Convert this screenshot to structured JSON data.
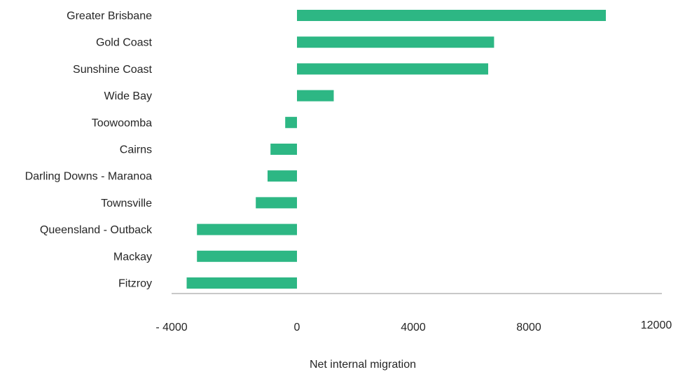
{
  "chart_data": {
    "type": "bar",
    "orientation": "horizontal",
    "categories": [
      "Greater Brisbane",
      "Gold Coast",
      "Sunshine Coast",
      "Wide Bay",
      "Toowoomba",
      "Cairns",
      "Darling Downs - Maranoa",
      "Townsville",
      "Queensland - Outback",
      "Mackay",
      "Fitzroy"
    ],
    "values": [
      10500,
      6700,
      6500,
      1250,
      -400,
      -900,
      -1000,
      -1400,
      -3400,
      -3400,
      -3750
    ],
    "xlabel": "Net internal migration",
    "ylabel": "",
    "xlim": [
      -4000,
      12000
    ],
    "xticks": [
      "- 4000",
      "0",
      "4000",
      "8000",
      "12000"
    ],
    "bar_color": "#2db784",
    "axis_color": "#c8c8c8",
    "grid": false,
    "legend": "none"
  }
}
